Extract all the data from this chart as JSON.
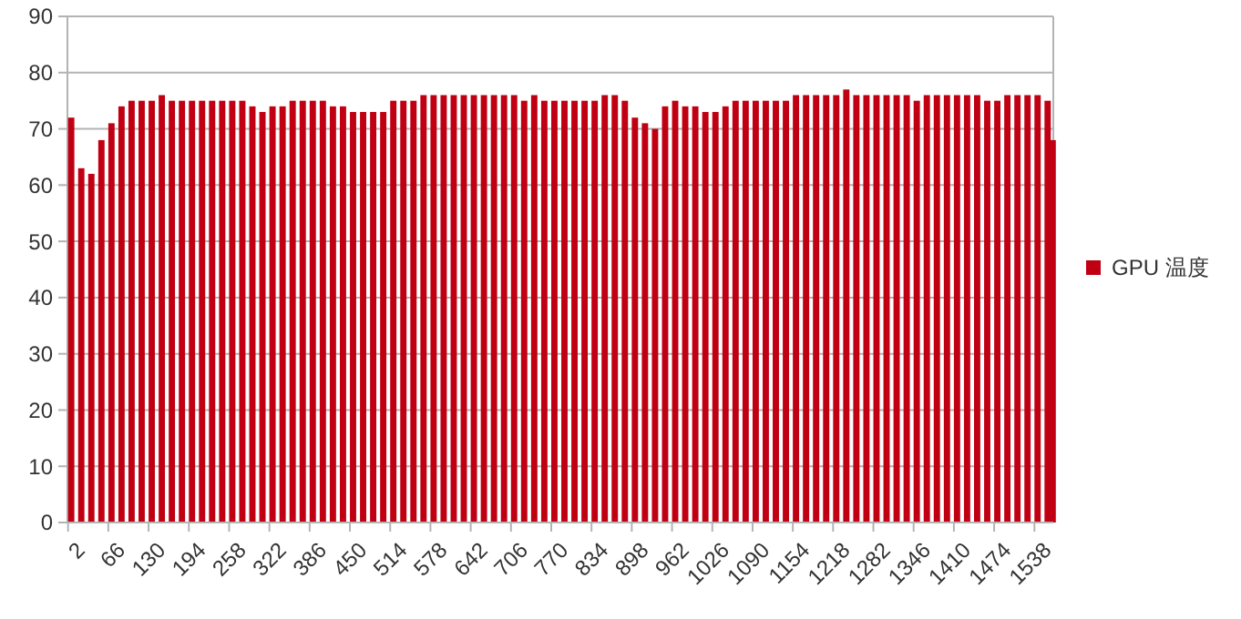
{
  "chart_data": {
    "type": "bar",
    "x": [
      2,
      18,
      34,
      50,
      66,
      82,
      98,
      114,
      130,
      146,
      162,
      178,
      194,
      210,
      226,
      242,
      258,
      274,
      290,
      306,
      322,
      338,
      354,
      370,
      386,
      402,
      418,
      434,
      450,
      466,
      482,
      498,
      514,
      530,
      546,
      562,
      578,
      594,
      610,
      626,
      642,
      658,
      674,
      690,
      706,
      722,
      738,
      754,
      770,
      786,
      802,
      818,
      834,
      850,
      866,
      882,
      898,
      914,
      930,
      946,
      962,
      978,
      994,
      1010,
      1026,
      1042,
      1058,
      1074,
      1090,
      1106,
      1122,
      1138,
      1154,
      1170,
      1186,
      1202,
      1218,
      1234,
      1250,
      1266,
      1282,
      1298,
      1314,
      1330,
      1346,
      1362,
      1378,
      1394,
      1410,
      1426,
      1442,
      1458,
      1474,
      1490,
      1506,
      1522,
      1538,
      1554,
      1562
    ],
    "series": [
      {
        "name": "GPU 温度",
        "color": "#c00012",
        "values": [
          72,
          63,
          62,
          68,
          71,
          74,
          75,
          75,
          75,
          76,
          75,
          75,
          75,
          75,
          75,
          75,
          75,
          75,
          74,
          73,
          74,
          74,
          75,
          75,
          75,
          75,
          74,
          74,
          73,
          73,
          73,
          73,
          75,
          75,
          75,
          76,
          76,
          76,
          76,
          76,
          76,
          76,
          76,
          76,
          76,
          75,
          76,
          75,
          75,
          75,
          75,
          75,
          75,
          76,
          76,
          75,
          72,
          71,
          70,
          74,
          75,
          74,
          74,
          73,
          73,
          74,
          75,
          75,
          75,
          75,
          75,
          75,
          76,
          76,
          76,
          76,
          76,
          77,
          76,
          76,
          76,
          76,
          76,
          76,
          75,
          76,
          76,
          76,
          76,
          76,
          76,
          75,
          75,
          76,
          76,
          76,
          76,
          75,
          68
        ]
      }
    ],
    "xlim": [
      1,
      1568
    ],
    "xticks": [
      2,
      66,
      130,
      194,
      258,
      322,
      386,
      450,
      514,
      578,
      642,
      706,
      770,
      834,
      898,
      962,
      1026,
      1090,
      1154,
      1218,
      1282,
      1346,
      1410,
      1474,
      1538
    ],
    "ylim": [
      0,
      90
    ],
    "yticks": [
      0,
      10,
      20,
      30,
      40,
      50,
      60,
      70,
      80,
      90
    ],
    "grid": "y",
    "legend": "right"
  }
}
